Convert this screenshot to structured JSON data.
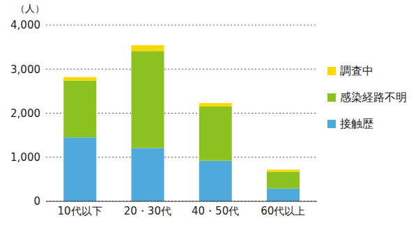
{
  "chart_data": {
    "type": "bar",
    "stacked": true,
    "grid": true,
    "legend": "right",
    "y_label": "（人）",
    "categories": [
      "10代以下",
      "20・30代",
      "40・50代",
      "60代以上"
    ],
    "series": [
      {
        "name": "接触歴",
        "color": "#4ea9dd",
        "values": [
          1450,
          1210,
          920,
          290
        ]
      },
      {
        "name": "感染経路不明",
        "color": "#8cc21f",
        "values": [
          1290,
          2200,
          1230,
          380
        ]
      },
      {
        "name": "調査中",
        "color": "#ffd800",
        "values": [
          80,
          130,
          80,
          50
        ]
      }
    ],
    "ylim": [
      0,
      4000
    ],
    "yticks": [
      0,
      {
        "value": 1000,
        "label": "1,000"
      },
      {
        "value": 2000,
        "label": "2,000"
      },
      {
        "value": 3000,
        "label": "3,000"
      },
      {
        "value": 4000,
        "label": "4,000"
      }
    ]
  }
}
